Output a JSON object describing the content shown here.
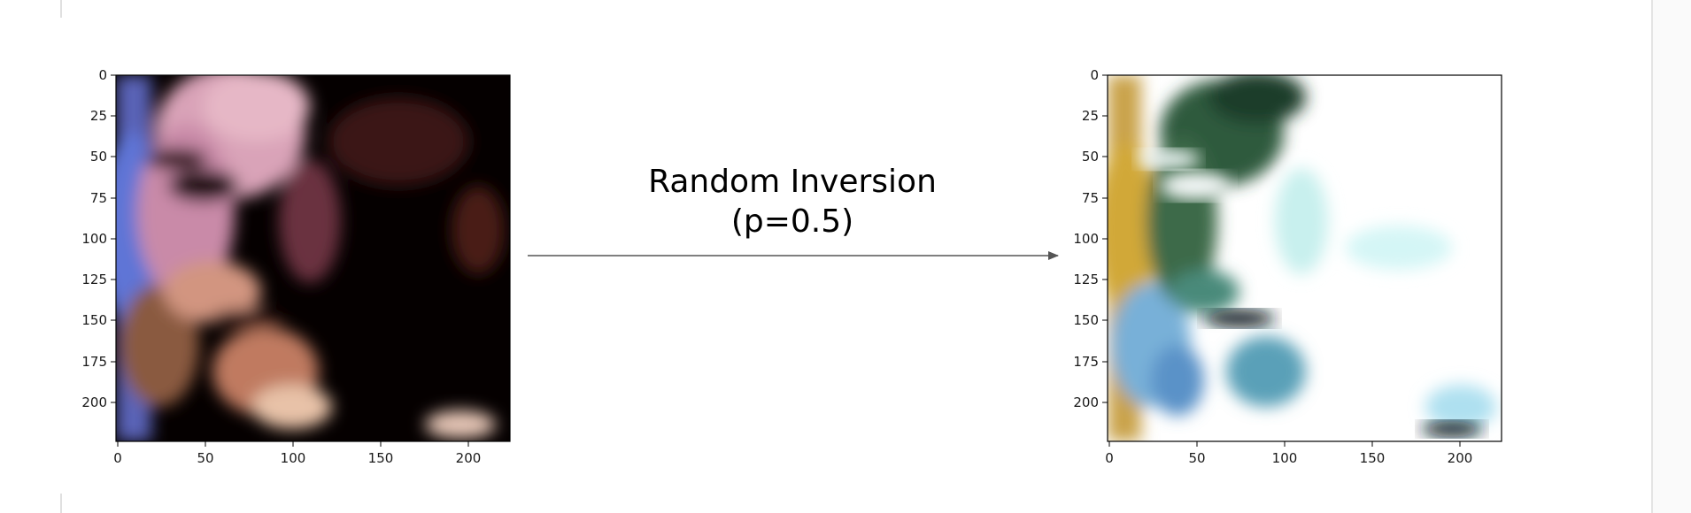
{
  "transform": {
    "title": "Random Inversion",
    "param": "(p=0.5)"
  },
  "axes": {
    "y_ticks": [
      "0",
      "25",
      "50",
      "75",
      "100",
      "125",
      "150",
      "175",
      "200"
    ],
    "x_ticks": [
      "0",
      "50",
      "100",
      "150",
      "200"
    ]
  },
  "images": {
    "left": "original-face-image",
    "right": "inverted-face-image"
  },
  "colors": {
    "arrow": "#555555",
    "axis": "#000000"
  }
}
